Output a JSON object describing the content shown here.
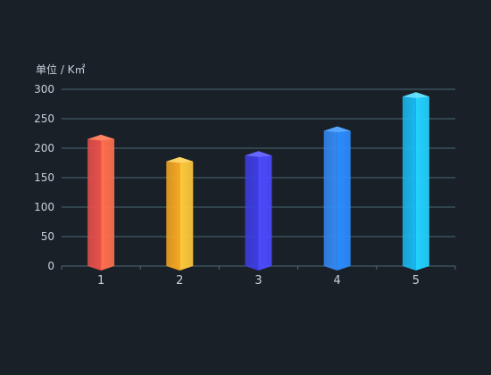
{
  "chart_data": {
    "type": "bar",
    "unit_label": "单位 / K㎡",
    "categories": [
      "1",
      "2",
      "3",
      "4",
      "5"
    ],
    "values": [
      223,
      185,
      195,
      237,
      295
    ],
    "ylim": [
      0,
      300
    ],
    "yticks": [
      0,
      50,
      100,
      150,
      200,
      250,
      300
    ],
    "grid": true,
    "colors": {
      "background": "#1a2028",
      "grid": "#4a6a76",
      "axis_text": "#c8d0d8",
      "bars": [
        {
          "left": "#e8504a",
          "right": "#ff6f4e",
          "top": "#ff8a66"
        },
        {
          "left": "#f5a623",
          "right": "#ffc83a",
          "top": "#ffd66b"
        },
        {
          "left": "#3d3de0",
          "right": "#4a4aff",
          "top": "#6b6bff"
        },
        {
          "left": "#3388f0",
          "right": "#2b8cff",
          "top": "#5aa8ff"
        },
        {
          "left": "#1ab8f0",
          "right": "#22d2ff",
          "top": "#6be2ff"
        }
      ]
    }
  }
}
